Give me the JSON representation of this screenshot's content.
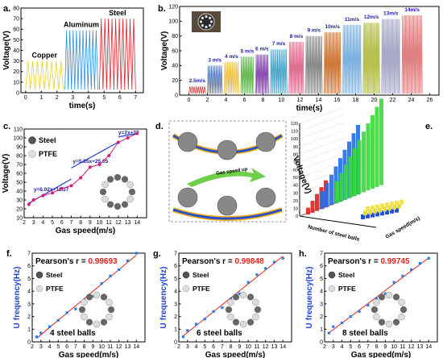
{
  "chart_data": [
    {
      "id": "a",
      "type": "line",
      "panel_label": "a.",
      "xlabel": "time(s)",
      "ylabel": "Voltage(V)",
      "xlim": [
        -0.3,
        7.5
      ],
      "ylim": [
        0,
        80
      ],
      "xticks": [
        0,
        1,
        2,
        3,
        4,
        5,
        6,
        7
      ],
      "yticks": [
        0,
        10,
        20,
        30,
        40,
        50,
        60,
        70,
        80
      ],
      "series": [
        {
          "name": "Copper",
          "color": "#e6d22a",
          "t_start": 0.0,
          "t_end": 2.4,
          "cycles": 8,
          "min": 3,
          "max": 30
        },
        {
          "name": "Aluminum",
          "color": "#2b8fd8",
          "t_start": 2.5,
          "t_end": 4.6,
          "cycles": 10,
          "min": 3,
          "max": 59
        },
        {
          "name": "Steel",
          "color": "#e4202a",
          "t_start": 4.7,
          "t_end": 7.0,
          "cycles": 10,
          "min": 3,
          "max": 70
        }
      ]
    },
    {
      "id": "b",
      "type": "line",
      "panel_label": "b.",
      "xlabel": "time(s)",
      "ylabel": "Voltage(V)",
      "xlim": [
        -1,
        27
      ],
      "ylim": [
        0,
        120
      ],
      "xticks": [
        0,
        2,
        4,
        6,
        8,
        10,
        12,
        14,
        16,
        18,
        20,
        22,
        24,
        26
      ],
      "yticks": [
        0,
        20,
        40,
        60,
        80,
        100,
        120
      ],
      "segments": [
        {
          "label": "2.5m/s",
          "t0": 0.0,
          "t1": 1.8,
          "amp": 12,
          "color": "#d62828"
        },
        {
          "label": "3 m/s",
          "t0": 2.0,
          "t1": 3.6,
          "amp": 40,
          "color": "#3a5fa8"
        },
        {
          "label": "4 m/s",
          "t0": 3.8,
          "t1": 5.4,
          "amp": 45,
          "color": "#e8b730"
        },
        {
          "label": "5 m/s",
          "t0": 5.6,
          "t1": 7.0,
          "amp": 52,
          "color": "#5fb84c"
        },
        {
          "label": "6 m/s",
          "t0": 7.2,
          "t1": 8.6,
          "amp": 55,
          "color": "#8a4fb0"
        },
        {
          "label": "7 m/s",
          "t0": 8.8,
          "t1": 10.6,
          "amp": 62,
          "color": "#3fa0c8"
        },
        {
          "label": "8 m/s",
          "t0": 10.8,
          "t1": 12.4,
          "amp": 72,
          "color": "#e07090"
        },
        {
          "label": "9 m/s",
          "t0": 12.6,
          "t1": 14.4,
          "amp": 80,
          "color": "#8a8a8a"
        },
        {
          "label": "10m/s",
          "t0": 14.6,
          "t1": 16.4,
          "amp": 85,
          "color": "#d07a3a"
        },
        {
          "label": "11m/s",
          "t0": 16.6,
          "t1": 18.6,
          "amp": 95,
          "color": "#7db1e0"
        },
        {
          "label": "12m/s",
          "t0": 18.8,
          "t1": 20.6,
          "amp": 98,
          "color": "#b8c050"
        },
        {
          "label": "13m/s",
          "t0": 20.8,
          "t1": 22.8,
          "amp": 103,
          "color": "#a9a9c8"
        },
        {
          "label": "14m/s",
          "t0": 23.0,
          "t1": 25.2,
          "amp": 108,
          "color": "#e08080"
        }
      ]
    },
    {
      "id": "c",
      "type": "line",
      "panel_label": "c.",
      "xlabel": "Gas speed(m/s)",
      "ylabel": "Voltage(V)",
      "xlim": [
        2,
        15
      ],
      "ylim": [
        10,
        110
      ],
      "xticks": [
        2,
        3,
        4,
        5,
        6,
        7,
        8,
        9,
        10,
        11,
        12,
        13,
        14
      ],
      "yticks": [
        10,
        20,
        30,
        40,
        50,
        60,
        70,
        80,
        90,
        100,
        110
      ],
      "x": [
        2.5,
        3,
        4,
        5,
        6,
        7,
        8,
        9,
        10,
        11,
        12,
        13,
        14
      ],
      "y": [
        25,
        30,
        35,
        38,
        43,
        46,
        55,
        67,
        70,
        80,
        95,
        100,
        105
      ],
      "fits": [
        {
          "eq": "y=6.02x+11.37",
          "x0": 2.5,
          "x1": 7,
          "m": 6.02,
          "b": 11.37
        },
        {
          "eq": "y=5.85x+25.05",
          "x0": 7,
          "x1": 12,
          "m": 5.85,
          "b": 25.05
        },
        {
          "eq": "y=2x+77",
          "x0": 12,
          "x1": 14,
          "m": 2,
          "b": 77
        }
      ],
      "legend": [
        "Steel",
        "PTFE"
      ]
    },
    {
      "id": "e",
      "type": "bar",
      "panel_label": "e.",
      "zlabel": "Voltage(V)",
      "xlabel": "Number of steel balls",
      "ylabel": "Gas speed(m/s)",
      "zticks": [
        0,
        10,
        20,
        30,
        40,
        50,
        60,
        70,
        80,
        90,
        100,
        110,
        120
      ]
    },
    {
      "id": "f",
      "type": "scatter",
      "panel_label": "f.",
      "xlabel": "Gas speed(m/s)",
      "ylabel": "U_frequency(Hz)",
      "xlim": [
        2,
        15
      ],
      "ylim": [
        0,
        7
      ],
      "xticks": [
        2,
        3,
        4,
        5,
        6,
        7,
        8,
        9,
        10,
        11,
        12,
        13,
        14
      ],
      "yticks": [
        0,
        1,
        2,
        3,
        4,
        5,
        6,
        7
      ],
      "x": [
        2.5,
        3,
        4,
        5,
        6,
        7,
        8,
        9,
        10,
        11,
        12,
        13,
        14
      ],
      "y": [
        0.4,
        0.7,
        1.2,
        1.7,
        2.3,
        2.6,
        3.3,
        3.6,
        4.6,
        5.2,
        5.7,
        6.4,
        7.0
      ],
      "pearson_label": "Pearson's r = ",
      "pearson_r": "0.99693",
      "caption": "4 steel balls",
      "legend": [
        "Steel",
        "PTFE"
      ]
    },
    {
      "id": "g",
      "type": "scatter",
      "panel_label": "g.",
      "xlabel": "Gas speed(m/s)",
      "ylabel": "U_frequency(Hz)",
      "xlim": [
        2,
        15
      ],
      "ylim": [
        0,
        7
      ],
      "xticks": [
        2,
        3,
        4,
        5,
        6,
        7,
        8,
        9,
        10,
        11,
        12,
        13,
        14
      ],
      "yticks": [
        0,
        1,
        2,
        3,
        4,
        5,
        6,
        7
      ],
      "x": [
        2.5,
        3,
        4,
        5,
        6,
        7,
        8,
        9,
        10,
        11,
        12,
        13,
        14
      ],
      "y": [
        0.4,
        0.9,
        1.4,
        1.8,
        2.4,
        2.7,
        3.4,
        3.8,
        4.7,
        5.3,
        5.8,
        6.3,
        6.6
      ],
      "pearson_label": "Pearson's r = ",
      "pearson_r": "0.99848",
      "caption": "6 steel balls",
      "legend": [
        "Steel",
        "PTFE"
      ]
    },
    {
      "id": "h",
      "type": "scatter",
      "panel_label": "h.",
      "xlabel": "Gas speed(m/s)",
      "ylabel": "U_frequency(Hz)",
      "xlim": [
        2,
        15
      ],
      "ylim": [
        0,
        7
      ],
      "xticks": [
        2,
        3,
        4,
        5,
        6,
        7,
        8,
        9,
        10,
        11,
        12,
        13,
        14
      ],
      "yticks": [
        0,
        1,
        2,
        3,
        4,
        5,
        6,
        7
      ],
      "x": [
        2.5,
        3,
        4,
        5,
        6,
        7,
        8,
        9,
        10,
        11,
        12,
        13,
        14
      ],
      "y": [
        0.7,
        1.2,
        1.5,
        2.0,
        2.4,
        2.9,
        3.4,
        3.8,
        4.7,
        5.2,
        5.7,
        6.2,
        6.6
      ],
      "pearson_label": "Pearson's r = ",
      "pearson_r": "0.99745",
      "caption": "8 steel balls",
      "legend": [
        "Steel",
        "PTFE"
      ]
    }
  ],
  "diagram_d": {
    "panel_label": "d.",
    "arrow_text": "Gas speed up"
  },
  "colors": {
    "accent": "#1f3fd6",
    "fitline": "#e0201a",
    "pearson": "#e0201a",
    "pink": "#d1207a"
  }
}
